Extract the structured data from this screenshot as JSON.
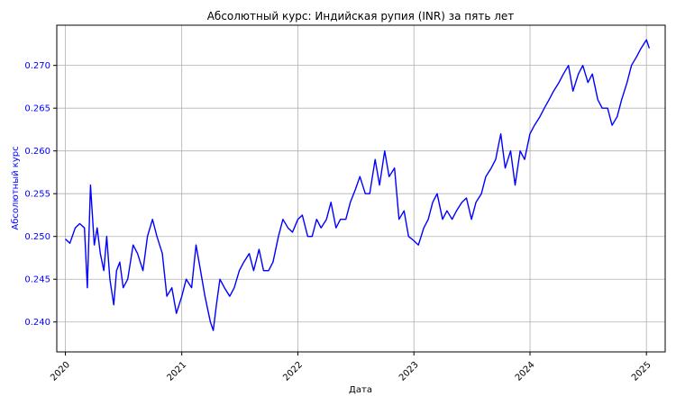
{
  "chart_data": {
    "type": "line",
    "title": "Абсолютный курс: Индийская рупия (INR) за пять лет",
    "xlabel": "Дата",
    "ylabel": "Абсолютный курс",
    "x_range": [
      "2019-12-05",
      "2025-03-01"
    ],
    "ylim": [
      0.2365,
      0.2747
    ],
    "xticks": [
      {
        "date": "2020-01-01",
        "label": "2020"
      },
      {
        "date": "2021-01-01",
        "label": "2021"
      },
      {
        "date": "2022-01-01",
        "label": "2022"
      },
      {
        "date": "2023-01-01",
        "label": "2023"
      },
      {
        "date": "2024-01-01",
        "label": "2024"
      },
      {
        "date": "2025-01-01",
        "label": "2025"
      }
    ],
    "yticks": [
      "0.240",
      "0.245",
      "0.250",
      "0.255",
      "0.260",
      "0.265",
      "0.270"
    ],
    "grid": true,
    "legend": "none",
    "colors": {
      "line": "#0000ff",
      "ytick": "#0000ff",
      "ylabel": "#0000ff",
      "grid": "#b0b0b0"
    },
    "series": [
      {
        "x": [
          "2020-01-01",
          "2020-01-15",
          "2020-02-01",
          "2020-02-15",
          "2020-03-01",
          "2020-03-10",
          "2020-03-20",
          "2020-04-01",
          "2020-04-10",
          "2020-04-20",
          "2020-05-01",
          "2020-05-10",
          "2020-05-20",
          "2020-06-01",
          "2020-06-10",
          "2020-06-20",
          "2020-07-01",
          "2020-07-15",
          "2020-08-01",
          "2020-08-15",
          "2020-09-01",
          "2020-09-15",
          "2020-10-01",
          "2020-10-15",
          "2020-11-01",
          "2020-11-15",
          "2020-12-01",
          "2020-12-15",
          "2021-01-01",
          "2021-01-15",
          "2021-02-01",
          "2021-02-15",
          "2021-03-01",
          "2021-03-15",
          "2021-04-01",
          "2021-04-10",
          "2021-04-20",
          "2021-05-01",
          "2021-05-15",
          "2021-06-01",
          "2021-06-15",
          "2021-07-01",
          "2021-07-15",
          "2021-08-01",
          "2021-08-15",
          "2021-09-01",
          "2021-09-15",
          "2021-10-01",
          "2021-10-15",
          "2021-11-01",
          "2021-11-15",
          "2021-12-01",
          "2021-12-15",
          "2022-01-01",
          "2022-01-15",
          "2022-02-01",
          "2022-02-15",
          "2022-03-01",
          "2022-03-15",
          "2022-04-01",
          "2022-04-15",
          "2022-05-01",
          "2022-05-15",
          "2022-06-01",
          "2022-06-15",
          "2022-07-01",
          "2022-07-15",
          "2022-08-01",
          "2022-08-15",
          "2022-09-01",
          "2022-09-15",
          "2022-10-01",
          "2022-10-15",
          "2022-11-01",
          "2022-11-15",
          "2022-12-01",
          "2022-12-15",
          "2023-01-01",
          "2023-01-15",
          "2023-02-01",
          "2023-02-15",
          "2023-03-01",
          "2023-03-15",
          "2023-04-01",
          "2023-04-15",
          "2023-05-01",
          "2023-05-15",
          "2023-06-01",
          "2023-06-15",
          "2023-07-01",
          "2023-07-15",
          "2023-08-01",
          "2023-08-15",
          "2023-09-01",
          "2023-09-15",
          "2023-10-01",
          "2023-10-15",
          "2023-11-01",
          "2023-11-15",
          "2023-12-01",
          "2023-12-15",
          "2024-01-01",
          "2024-01-15",
          "2024-02-01",
          "2024-02-15",
          "2024-03-01",
          "2024-03-15",
          "2024-04-01",
          "2024-04-15",
          "2024-05-01",
          "2024-05-15",
          "2024-06-01",
          "2024-06-15",
          "2024-07-01",
          "2024-07-15",
          "2024-08-01",
          "2024-08-15",
          "2024-09-01",
          "2024-09-15",
          "2024-10-01",
          "2024-10-15",
          "2024-11-01",
          "2024-11-15",
          "2024-12-01",
          "2024-12-15",
          "2025-01-01",
          "2025-01-10"
        ],
        "y": [
          0.2497,
          0.2492,
          0.251,
          0.2515,
          0.251,
          0.244,
          0.256,
          0.249,
          0.251,
          0.248,
          0.246,
          0.25,
          0.245,
          0.242,
          0.246,
          0.247,
          0.244,
          0.245,
          0.249,
          0.248,
          0.246,
          0.25,
          0.252,
          0.25,
          0.248,
          0.243,
          0.244,
          0.241,
          0.243,
          0.245,
          0.244,
          0.249,
          0.246,
          0.243,
          0.24,
          0.239,
          0.242,
          0.245,
          0.244,
          0.243,
          0.244,
          0.246,
          0.247,
          0.248,
          0.246,
          0.2485,
          0.246,
          0.246,
          0.247,
          0.25,
          0.252,
          0.251,
          0.2505,
          0.252,
          0.2525,
          0.25,
          0.25,
          0.252,
          0.251,
          0.252,
          0.254,
          0.251,
          0.252,
          0.252,
          0.254,
          0.2555,
          0.257,
          0.255,
          0.255,
          0.259,
          0.256,
          0.26,
          0.257,
          0.258,
          0.252,
          0.253,
          0.25,
          0.2495,
          0.249,
          0.251,
          0.252,
          0.254,
          0.255,
          0.252,
          0.253,
          0.252,
          0.253,
          0.254,
          0.2545,
          0.252,
          0.254,
          0.255,
          0.257,
          0.258,
          0.259,
          0.262,
          0.258,
          0.26,
          0.256,
          0.26,
          0.259,
          0.262,
          0.263,
          0.264,
          0.265,
          0.266,
          0.267,
          0.268,
          0.269,
          0.27,
          0.267,
          0.269,
          0.27,
          0.268,
          0.269,
          0.266,
          0.265,
          0.265,
          0.263,
          0.264,
          0.266,
          0.268,
          0.27,
          0.271,
          0.272,
          0.273,
          0.272
        ]
      }
    ]
  }
}
